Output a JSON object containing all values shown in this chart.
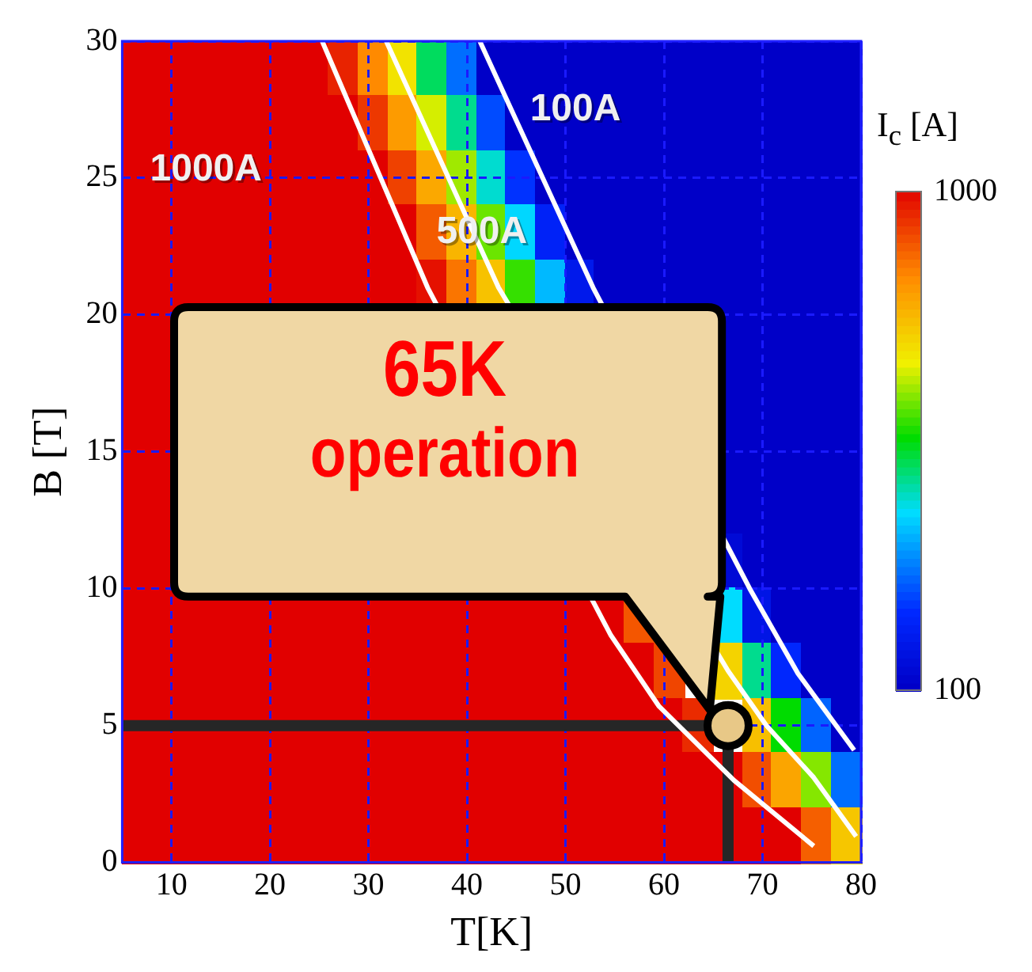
{
  "chart_data": {
    "type": "heatmap",
    "xlabel": "T[K]",
    "ylabel": "B [T]",
    "clabel": "I$_{c}$ [A]",
    "xlim": [
      5,
      80
    ],
    "xticks": [
      10,
      20,
      30,
      40,
      50,
      60,
      70,
      80
    ],
    "ylim": [
      0,
      30
    ],
    "yticks": [
      0,
      5,
      10,
      15,
      20,
      25,
      30
    ],
    "grid": true,
    "clim": [
      100,
      1000
    ],
    "cticks": [
      100,
      1000
    ],
    "x": [
      6.5,
      9.5,
      12.5,
      15.5,
      18.5,
      21.5,
      24.5,
      27.5,
      30.5,
      33.5,
      36.5,
      39.5,
      42.5,
      45.5,
      48.5,
      51.5,
      54.5,
      57.5,
      60.5,
      63.5,
      66.5,
      69.5,
      72.5,
      75.5,
      78.5
    ],
    "cells": [
      [
        1000,
        1000,
        1000,
        1000,
        1000,
        1000,
        1000,
        960,
        840,
        705,
        500,
        305,
        100,
        100,
        100,
        100,
        100,
        100,
        100,
        100,
        100,
        100,
        100,
        100,
        100
      ],
      [
        1000,
        1000,
        1000,
        1000,
        1000,
        1000,
        1000,
        1000,
        935,
        815,
        670,
        475,
        270,
        100,
        100,
        100,
        100,
        100,
        100,
        100,
        100,
        100,
        100,
        100,
        100
      ],
      [
        1000,
        1000,
        1000,
        1000,
        1000,
        1000,
        1000,
        1000,
        1000,
        925,
        795,
        640,
        440,
        245,
        100,
        100,
        100,
        100,
        100,
        100,
        100,
        100,
        100,
        100,
        100
      ],
      [
        1000,
        1000,
        1000,
        1000,
        1000,
        1000,
        1000,
        1000,
        1000,
        1000,
        895,
        775,
        610,
        410,
        215,
        100,
        100,
        100,
        100,
        100,
        100,
        100,
        100,
        100,
        100
      ],
      [
        1000,
        1000,
        1000,
        1000,
        1000,
        1000,
        1000,
        1000,
        1000,
        1000,
        980,
        865,
        755,
        580,
        380,
        185,
        100,
        100,
        100,
        100,
        100,
        100,
        100,
        100,
        100
      ],
      [
        1000,
        1000,
        null,
        null,
        null,
        null,
        null,
        null,
        null,
        null,
        null,
        null,
        null,
        null,
        null,
        null,
        null,
        null,
        null,
        null,
        100,
        100,
        100,
        100,
        100
      ],
      [
        1000,
        1000,
        null,
        null,
        null,
        null,
        null,
        null,
        null,
        null,
        null,
        null,
        null,
        null,
        null,
        null,
        null,
        null,
        null,
        null,
        100,
        100,
        100,
        100,
        100
      ],
      [
        1000,
        1000,
        null,
        null,
        null,
        null,
        null,
        null,
        null,
        null,
        null,
        null,
        null,
        null,
        null,
        null,
        null,
        null,
        null,
        null,
        100,
        100,
        100,
        100,
        100
      ],
      [
        1000,
        1000,
        null,
        null,
        null,
        null,
        null,
        null,
        null,
        null,
        null,
        null,
        null,
        null,
        null,
        null,
        null,
        null,
        null,
        null,
        100,
        100,
        100,
        100,
        100
      ],
      [
        1000,
        1000,
        null,
        null,
        null,
        null,
        null,
        null,
        null,
        null,
        null,
        null,
        null,
        null,
        null,
        null,
        null,
        null,
        null,
        null,
        135,
        100,
        100,
        100,
        100
      ],
      [
        1000,
        1000,
        1000,
        1000,
        1000,
        1000,
        1000,
        1000,
        1000,
        1000,
        1000,
        1000,
        1000,
        1000,
        1000,
        1000,
        1000,
        900,
        null,
        null,
        415,
        170,
        100,
        100,
        100
      ],
      [
        1000,
        1000,
        1000,
        1000,
        1000,
        1000,
        1000,
        1000,
        1000,
        1000,
        1000,
        1000,
        1000,
        1000,
        1000,
        1000,
        1000,
        1000,
        920,
        null,
        730,
        475,
        230,
        100,
        100
      ],
      [
        1000,
        1000,
        1000,
        1000,
        1000,
        1000,
        1000,
        1000,
        1000,
        1000,
        1000,
        1000,
        1000,
        1000,
        1000,
        1000,
        1000,
        1000,
        1000,
        950,
        null,
        760,
        550,
        295,
        100
      ],
      [
        1000,
        1000,
        1000,
        1000,
        1000,
        1000,
        1000,
        1000,
        1000,
        1000,
        1000,
        1000,
        1000,
        1000,
        1000,
        1000,
        1000,
        1000,
        1000,
        1000,
        1000,
        910,
        800,
        625,
        305
      ],
      [
        1000,
        1000,
        1000,
        1000,
        1000,
        1000,
        1000,
        1000,
        1000,
        1000,
        1000,
        1000,
        1000,
        1000,
        1000,
        1000,
        1000,
        1000,
        1000,
        1000,
        1000,
        1000,
        1000,
        890,
        750
      ]
    ],
    "series": [
      {
        "type": "line",
        "color": "#ffffff",
        "x": [
          25.3,
          36,
          54.6,
          59.5,
          67.1,
          75.2
        ],
        "values": [
          30,
          21,
          8.3,
          5.7,
          3,
          0.6
        ]
      },
      {
        "type": "line",
        "color": "#ffffff",
        "x": [
          31.8,
          43.2,
          66.5,
          70.4,
          75.2,
          79.5
        ],
        "values": [
          30,
          21,
          7,
          5,
          3.1,
          0.95
        ]
      },
      {
        "type": "line",
        "color": "#ffffff",
        "x": [
          41.3,
          52.8,
          68.7,
          73.6,
          79.3
        ],
        "values": [
          30,
          21,
          10,
          6.9,
          4.1
        ]
      },
      {
        "type": "line",
        "color": "#262626",
        "x": [
          5,
          66.5,
          66.5
        ],
        "values": [
          5,
          5,
          0
        ]
      },
      {
        "type": "scatter",
        "color": "#e8c887",
        "marker": "circle",
        "x": [
          66.5
        ],
        "values": [
          5
        ]
      }
    ],
    "annotations": [
      "1000A",
      "500A",
      "100A",
      "65K",
      "operation"
    ]
  }
}
